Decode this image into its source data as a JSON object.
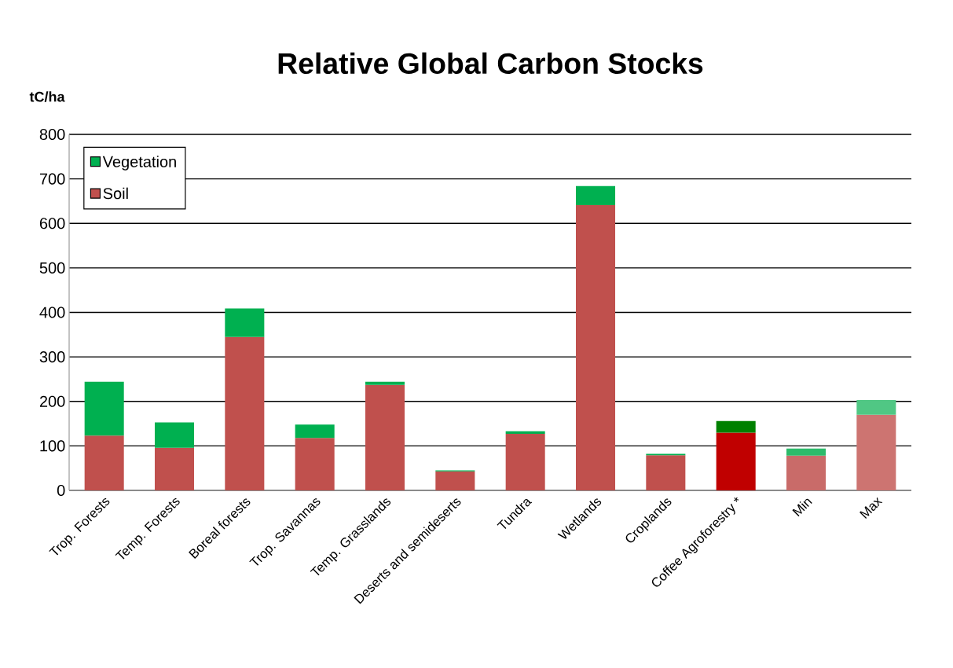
{
  "chart_data": {
    "type": "bar",
    "title": "Relative Global Carbon Stocks",
    "ylabel": "tC/ha",
    "categories": [
      "Trop. Forests",
      "Temp. Forests",
      "Boreal forests",
      "Trop. Savannas",
      "Temp. Grasslands",
      "Deserts and semideserts",
      "Tundra",
      "Wetlands",
      "Croplands",
      "Coffee Agroforestry *",
      "Min",
      "Max"
    ],
    "stacked": true,
    "series": [
      {
        "name": "Soil",
        "color": "#c0504d",
        "colors": [
          "#c0504d",
          "#c0504d",
          "#c0504d",
          "#c0504d",
          "#c0504d",
          "#c0504d",
          "#c0504d",
          "#c0504d",
          "#c0504d",
          "#c00000",
          "#c96b69",
          "#cd7471"
        ],
        "values": [
          123,
          96,
          345,
          118,
          237,
          43,
          127,
          641,
          79,
          130,
          78,
          170
        ]
      },
      {
        "name": "Vegetation",
        "color": "#00b050",
        "colors": [
          "#00b050",
          "#00b050",
          "#00b050",
          "#00b050",
          "#00b050",
          "#00b050",
          "#00b050",
          "#00b050",
          "#00b050",
          "#008000",
          "#2dbb6b",
          "#50c784"
        ],
        "values": [
          121,
          57,
          64,
          30,
          7,
          2,
          6,
          43,
          3,
          26,
          16,
          33
        ]
      }
    ],
    "ylim": [
      0,
      800
    ],
    "yticks": [
      0,
      100,
      200,
      300,
      400,
      500,
      600,
      700,
      800
    ],
    "grid": "y",
    "legend": "top left"
  }
}
